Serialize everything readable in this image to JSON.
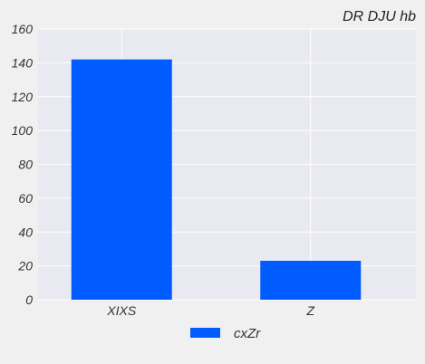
{
  "chart_data": {
    "type": "bar",
    "title": "DR DJU hb",
    "xlabel": "",
    "ylabel": "",
    "categories": [
      "XIXS",
      "Z"
    ],
    "series": [
      {
        "name": "cxZr",
        "values": [
          142,
          23
        ],
        "color": "#005cff"
      }
    ],
    "ylim": [
      0,
      160
    ],
    "yticks": [
      "0",
      "20",
      "40",
      "60",
      "80",
      "100",
      "120",
      "140",
      "160"
    ],
    "grid": true,
    "legend": "bottom-center",
    "colors": {
      "plot_background": "#e9e9f1",
      "grid": "#ffffff",
      "page_background": "#f0f0f0"
    }
  }
}
